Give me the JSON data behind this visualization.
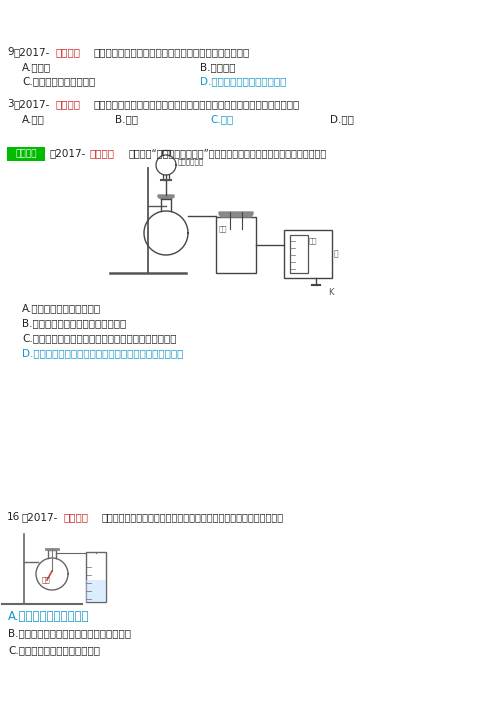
{
  "bg_color": "#ffffff",
  "red": "#cc2222",
  "blue": "#1199cc",
  "black": "#222222",
  "green": "#00bb00",
  "q9_num": "9",
  "q9_city": "2017-",
  "q9_cityname": "北京中考",
  "q9_stem": "）下列方法能区分氧气和二氧化碳两种气体的是（　　）",
  "q9_A": "A.闻气味",
  "q9_B": "B.观察颜色",
  "q9_C": "C.倒入适量氢氧化鍶溶液",
  "q9_D": "D.将燃着的木条伸入集气碓中",
  "q3_num": "3",
  "q3_city": "2017-",
  "q3_cityname": "北京中考",
  "q3_stem": "）下列物质在氧气中燃烧，现象为火星四射，有黑色固体生成的是（　　）",
  "q3_A": "A.红磷",
  "q3_B": "B.木灰",
  "q3_C": "C.鐵丝",
  "q3_D": "D.酒精",
  "good_badge": "【好题】",
  "good_city": "2017-",
  "good_cityname": "岐山中考",
  "good_stem": "）下图是“鐵丝在氧气中燃烧”的实验改进装置。下列说法错误的是（　　）",
  "good_label_A": "过氧化氢溶液",
  "good_label_flask": "液液",
  "good_A": "A.氧气无需提前制备和收集",
  "good_B": "B.用塑料瓶代替集气碓，实验更安全",
  "good_C": "C.该装置也可用于二氧化碳和氢气的制备、干燥和检验",
  "good_D": "D.鐵丝在氧气中剑烈燃烧，发出黄色火血，产生黑色固体",
  "lbl_h2o2": "过氧化氢溶液",
  "lbl_flask": "液液",
  "lbl_liangtong": "量筒",
  "lbl_shui": "水",
  "q16_num": "16",
  "q16_city": "2017-",
  "q16_cityname": "邵阳中考",
  "q16_stem": "）如图为测定空气中氧气含量的实验装置，下列做法合理的是（　　）",
  "q16_A": "A.用过量的红磷进行实验",
  "q16_B": "B.红磷点燃后，缓慢伸入碓中并塞紧橡皮塞",
  "q16_C": "C.红磷息灬后，立即打开止水夹",
  "lbl_honglin": "红磷"
}
